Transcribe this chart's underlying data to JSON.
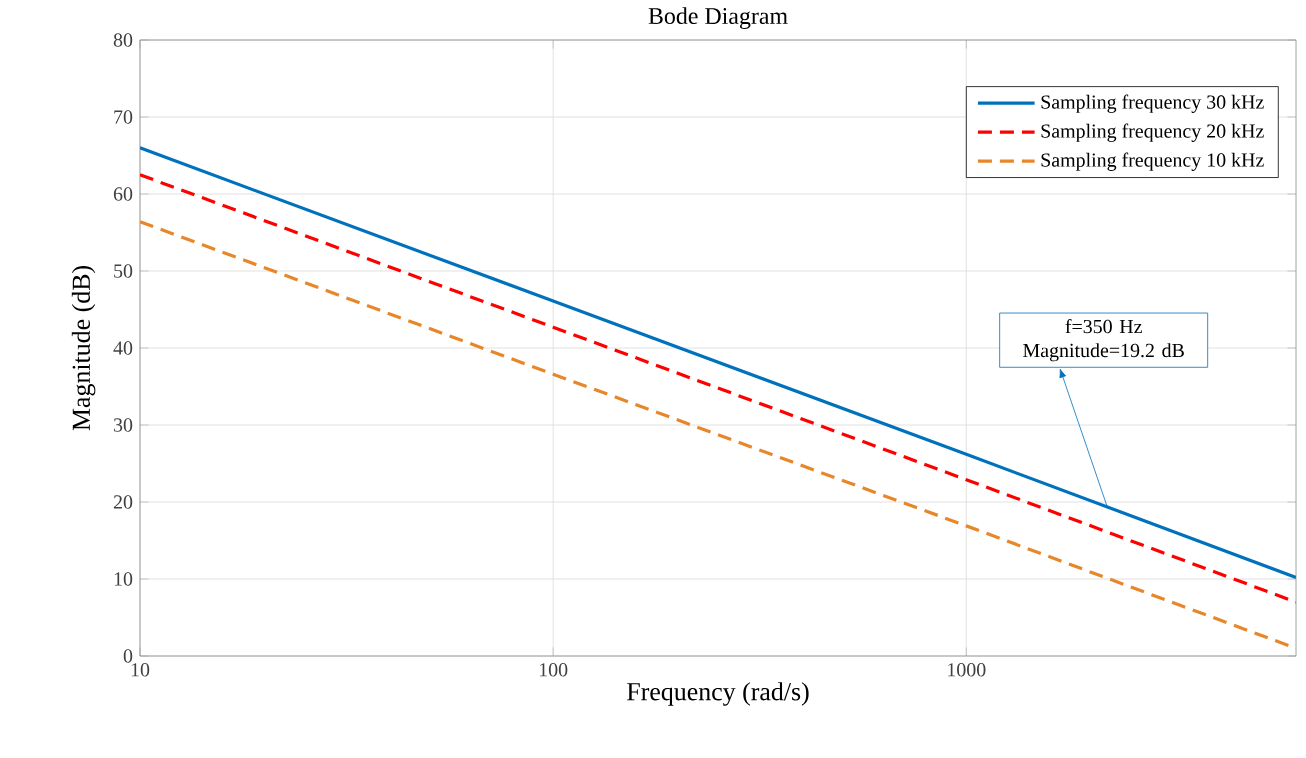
{
  "chart_data": {
    "type": "line",
    "title": "Bode Diagram",
    "xlabel": "Frequency (rad/s)",
    "ylabel": "Magnitude (dB)",
    "log": "x",
    "grid": true,
    "legend": "top right",
    "xlim": [
      10,
      6283
    ],
    "xticks": [
      10,
      100,
      1000
    ],
    "ylim": [
      0,
      80
    ],
    "yticks": [
      0,
      10,
      20,
      30,
      40,
      50,
      60,
      70,
      80
    ],
    "series": [
      {
        "name": "Sampling frequency 30 kHz",
        "color": "#0072bd",
        "line_style": "solid",
        "x": [
          10,
          100,
          1000,
          6283
        ],
        "values": [
          66,
          46.1,
          26.2,
          10.2
        ]
      },
      {
        "name": "Sampling frequency 20 kHz",
        "color": "#ff0000",
        "line_style": "dashed",
        "x": [
          10,
          100,
          1000,
          6283
        ],
        "values": [
          62.5,
          42.7,
          22.9,
          7
        ]
      },
      {
        "name": "Sampling frequency 10 kHz",
        "color": "#e8862a",
        "line_style": "dashed",
        "x": [
          10,
          100,
          1000,
          6283
        ],
        "values": [
          56.4,
          36.6,
          16.9,
          1
        ]
      }
    ],
    "annotations": [
      {
        "text": "f=350 Hz Magnitude=19.2 dB",
        "x": 2199,
        "y": 19.2
      }
    ]
  }
}
